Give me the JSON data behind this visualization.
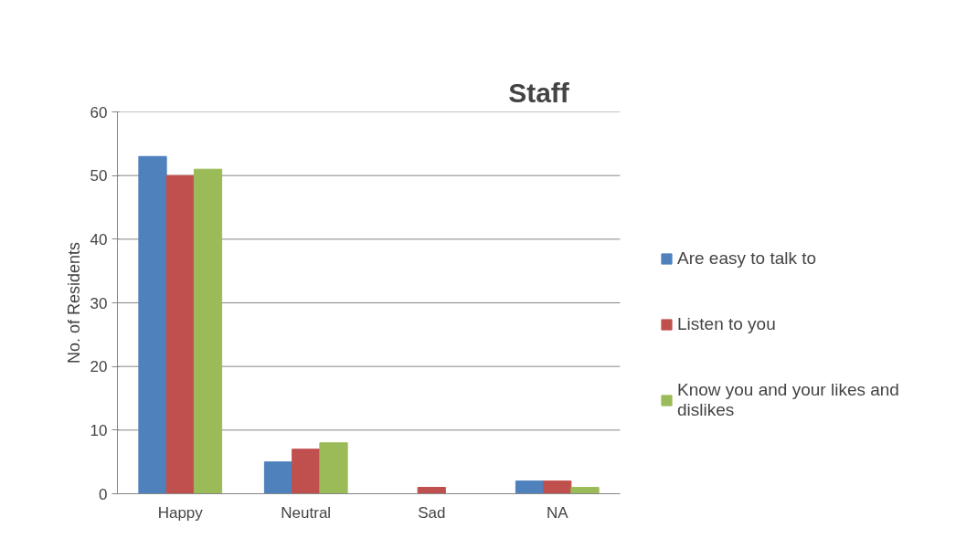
{
  "chart_data": {
    "type": "bar",
    "title": "Staff",
    "ylabel": "No. of Residents",
    "categories": [
      "Happy",
      "Neutral",
      "Sad",
      "NA"
    ],
    "series": [
      {
        "name": "Are easy to talk to",
        "color": "#4f81bd",
        "values": [
          53,
          5,
          0,
          2
        ]
      },
      {
        "name": "Listen to you",
        "color": "#c0504d",
        "values": [
          50,
          7,
          1,
          2
        ]
      },
      {
        "name": "Know you and your likes and dislikes",
        "color": "#9bbb59",
        "values": [
          51,
          8,
          0,
          1
        ]
      }
    ],
    "ylim": [
      0,
      60
    ],
    "yticks": [
      0,
      10,
      20,
      30,
      40,
      50,
      60
    ],
    "grid": "y",
    "legend": "right"
  }
}
